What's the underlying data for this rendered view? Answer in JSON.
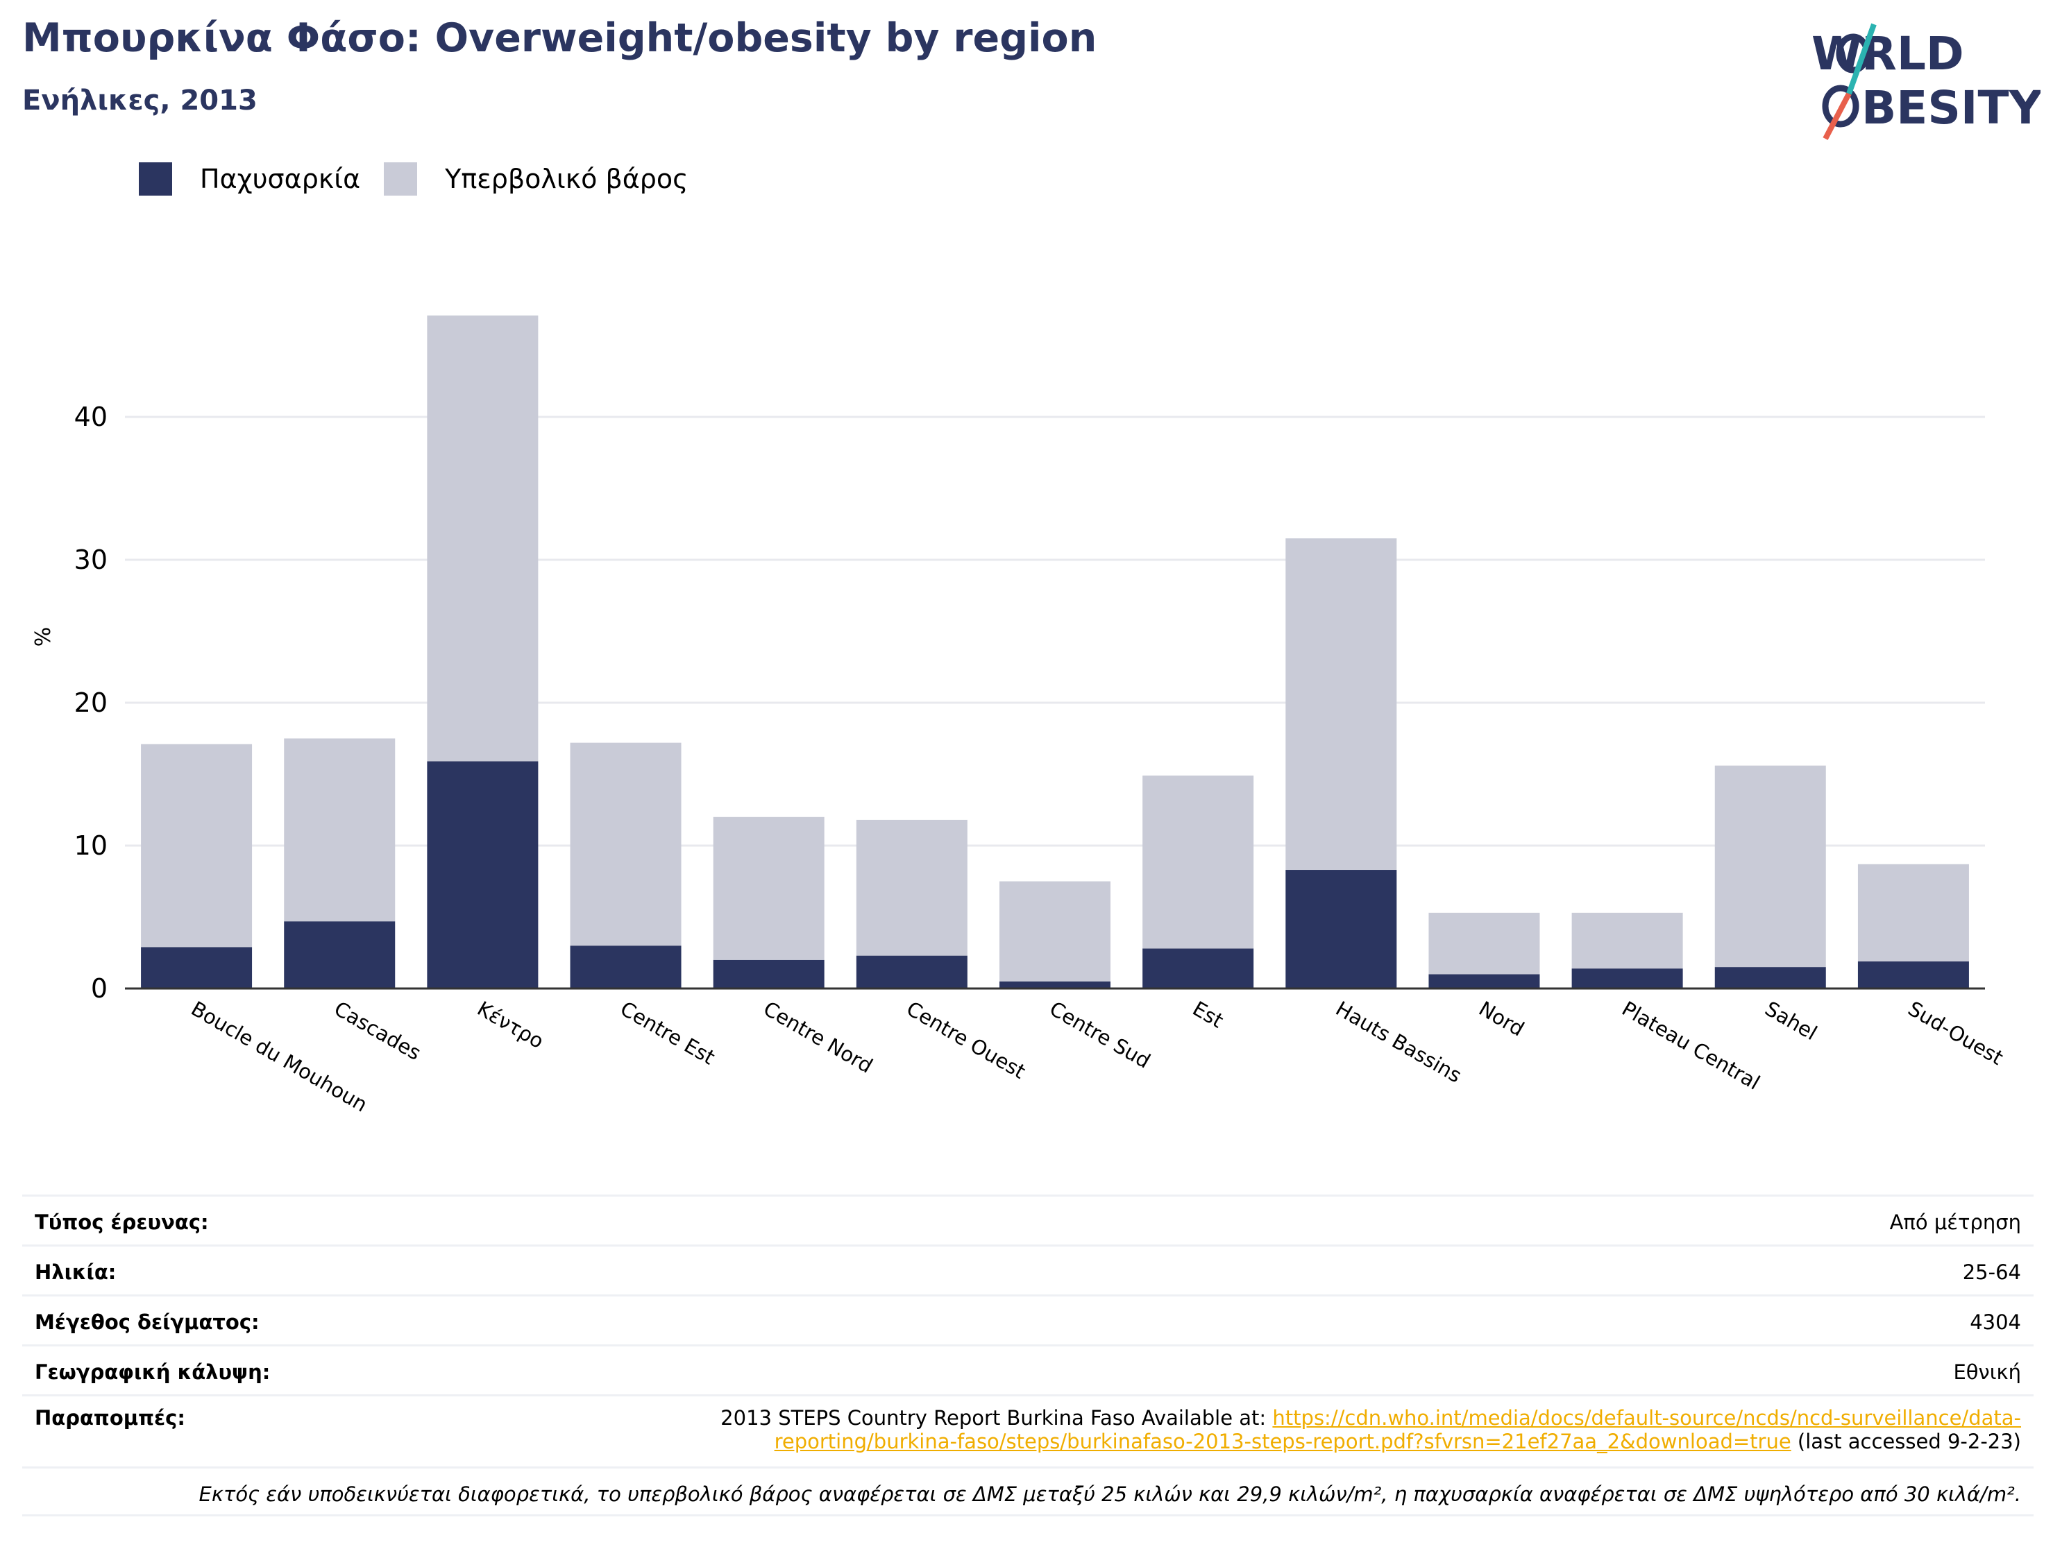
{
  "header": {
    "title": "Μπουρκίνα Φάσο: Overweight/obesity by region",
    "subtitle": "Ενήλικες, 2013"
  },
  "logo": {
    "line1": "WORLD",
    "line2": "OBESITY"
  },
  "colors": {
    "obesity": "#2b3560",
    "overweight": "#c9cbd7",
    "accent_teal": "#2bb3b1",
    "accent_red": "#e8604c",
    "link": "#f0ad00"
  },
  "chart_data": {
    "type": "bar",
    "stacked": true,
    "categories": [
      "Boucle du Mouhoun",
      "Cascades",
      "Κέντρο",
      "Centre Est",
      "Centre Nord",
      "Centre Ouest",
      "Centre Sud",
      "Est",
      "Hauts Bassins",
      "Nord",
      "Plateau Central",
      "Sahel",
      "Sud-Ouest"
    ],
    "series": [
      {
        "name": "Παχυσαρκία",
        "values": [
          2.9,
          4.7,
          15.9,
          3.0,
          2.0,
          2.3,
          0.5,
          2.8,
          8.3,
          1.0,
          1.4,
          1.5,
          1.9
        ]
      },
      {
        "name": "Υπερβολικό βάρος",
        "values": [
          14.2,
          12.8,
          31.2,
          14.2,
          10.0,
          9.5,
          7.0,
          12.1,
          23.2,
          4.3,
          3.9,
          14.1,
          6.8
        ]
      }
    ],
    "ylabel": "%",
    "yticks": [
      0,
      10,
      20,
      30,
      40
    ],
    "ylim": [
      0,
      48
    ],
    "grid": true,
    "legend_position": "top-left"
  },
  "info": {
    "survey_type_label": "Τύπος έρευνας:",
    "survey_type_value": "Από μέτρηση",
    "age_label": "Ηλικία:",
    "age_value": "25-64",
    "sample_label": "Μέγεθος δείγματος:",
    "sample_value": "4304",
    "coverage_label": "Γεωγραφική κάλυψη:",
    "coverage_value": "Εθνική",
    "refs_label": "Παραπομπές:",
    "refs_prefix": "2013 STEPS Country Report Burkina Faso Available at: ",
    "refs_link_line1": "https://cdn.who.int/media/docs/default-source/ncds/ncd-surveillance/data-",
    "refs_link_line2": "reporting/burkina-faso/steps/burkinafaso-2013-steps-report.pdf?sfvrsn=21ef27aa_2&download=true",
    "refs_suffix": " (last accessed 9-2-23)",
    "note": "Εκτός εάν υποδεικνύεται διαφορετικά, το υπερβολικό βάρος αναφέρεται σε ΔΜΣ μεταξύ 25 κιλών και 29,9 κιλών/m², η παχυσαρκία αναφέρεται σε ΔΜΣ υψηλότερο από 30 κιλά/m²."
  }
}
